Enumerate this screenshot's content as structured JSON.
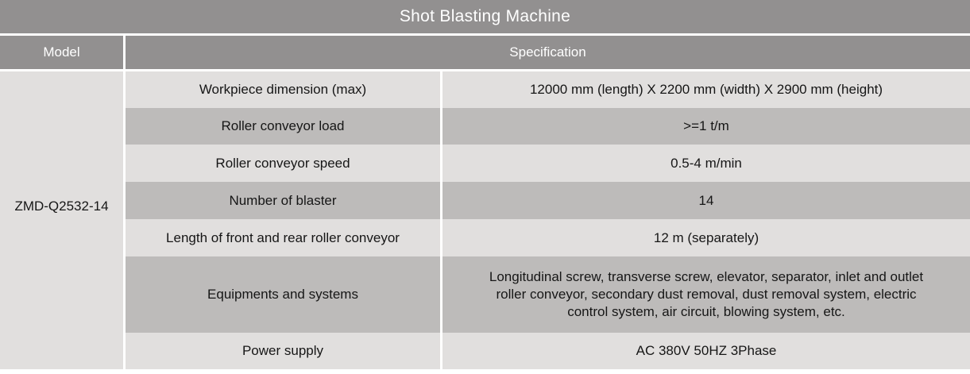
{
  "title": "Shot Blasting Machine",
  "header": {
    "model_label": "Model",
    "spec_label": "Specification"
  },
  "model_value": "ZMD-Q2532-14",
  "rows": [
    {
      "label": "Workpiece dimension (max)",
      "value": "12000 mm (length) X 2200 mm (width) X 2900 mm (height)"
    },
    {
      "label": "Roller conveyor load",
      "value": ">=1 t/m"
    },
    {
      "label": "Roller conveyor speed",
      "value": "0.5-4 m/min"
    },
    {
      "label": "Number of blaster",
      "value": "14"
    },
    {
      "label": "Length of front and rear roller conveyor",
      "value": "12 m (separately)"
    },
    {
      "label": "Equipments and systems",
      "value": "Longitudinal screw, transverse screw, elevator, separator, inlet and outlet roller conveyor, secondary dust removal, dust removal system, electric control system, air circuit, blowing system, etc."
    },
    {
      "label": "Power supply",
      "value": "AC 380V 50HZ 3Phase"
    }
  ],
  "colors": {
    "header_bg": "#929090",
    "row_light": "#e1dfde",
    "row_dark": "#bdbbba",
    "header_text": "#ffffff",
    "body_text": "#161616",
    "border": "#ffffff"
  }
}
